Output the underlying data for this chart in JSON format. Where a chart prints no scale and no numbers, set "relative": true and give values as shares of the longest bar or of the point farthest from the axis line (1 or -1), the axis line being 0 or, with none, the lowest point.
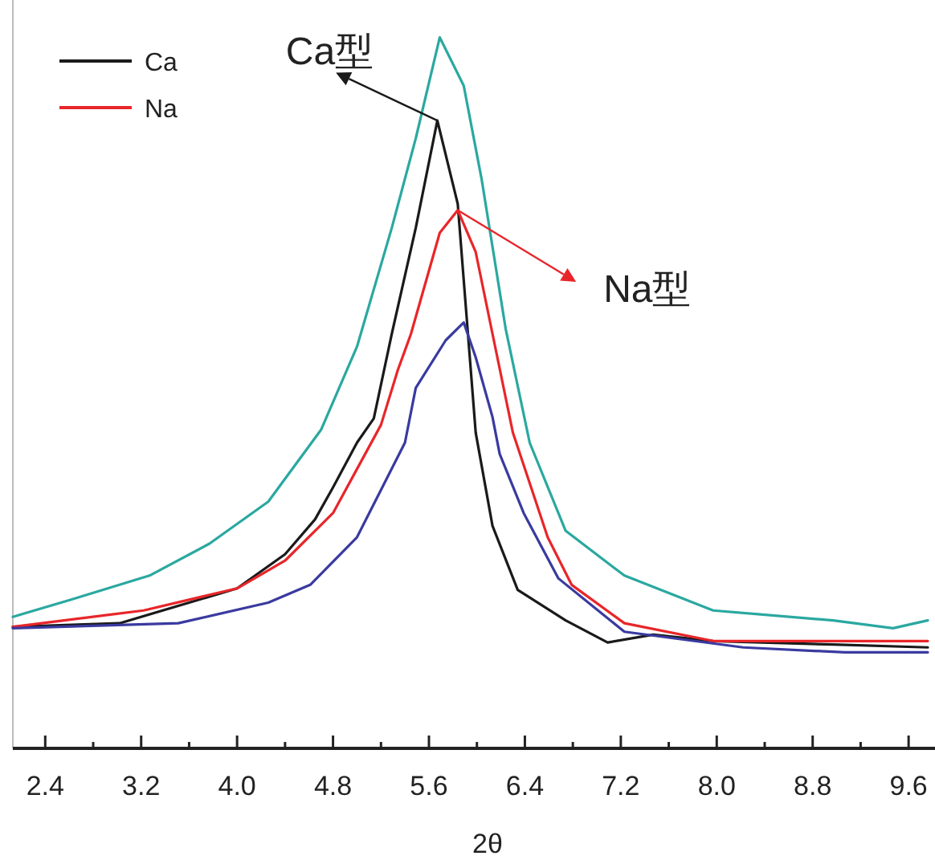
{
  "chart_data": {
    "type": "line",
    "relative": true,
    "xlabel": "2θ",
    "xlim": [
      2.13,
      9.78
    ],
    "xticks": [
      2.4,
      {
        "value": 2.8,
        "label": null
      },
      3.2,
      {
        "value": 3.6,
        "label": null
      },
      {
        "value": 4,
        "label": "4.0"
      },
      {
        "value": 4.4,
        "label": null
      },
      4.8,
      {
        "value": 5.2,
        "label": null
      },
      5.6,
      {
        "value": 6,
        "label": null
      },
      6.4,
      {
        "value": 6.8,
        "label": null
      },
      7.2,
      {
        "value": 7.6,
        "label": null
      },
      {
        "value": 8,
        "label": "8.0"
      },
      {
        "value": 8.4,
        "label": null
      },
      8.8,
      {
        "value": 9.2,
        "label": null
      },
      9.6
    ],
    "legend": "top left",
    "grid": false,
    "marker": "none",
    "line_style": "solid",
    "annotations": [
      {
        "text": "Ca型",
        "x": 5.67,
        "y": 0.883
      },
      {
        "text": "Na型",
        "x": 5.84,
        "y": 0.757
      }
    ],
    "series": [
      {
        "name": "Ca",
        "color": "#1a1a1a",
        "x": [
          2.13,
          3.02,
          4.0,
          4.4,
          4.65,
          4.8,
          5.0,
          5.14,
          5.29,
          5.49,
          5.67,
          5.84,
          5.99,
          6.13,
          6.34,
          6.74,
          7.09,
          7.47,
          7.97,
          8.97,
          9.76
        ],
        "values": [
          0.171,
          0.176,
          0.225,
          0.273,
          0.322,
          0.367,
          0.43,
          0.464,
          0.583,
          0.732,
          0.883,
          0.766,
          0.444,
          0.313,
          0.223,
          0.18,
          0.149,
          0.16,
          0.151,
          0.146,
          0.142
        ]
      },
      {
        "name": "Na",
        "color": "#e8262a",
        "x": [
          2.13,
          3.22,
          4.0,
          4.4,
          4.8,
          5.2,
          5.34,
          5.45,
          5.69,
          5.84,
          5.99,
          6.13,
          6.3,
          6.59,
          6.79,
          7.23,
          7.97,
          8.97,
          9.76
        ],
        "values": [
          0.171,
          0.194,
          0.225,
          0.264,
          0.331,
          0.455,
          0.532,
          0.583,
          0.725,
          0.757,
          0.698,
          0.583,
          0.444,
          0.297,
          0.23,
          0.176,
          0.151,
          0.151,
          0.151
        ]
      },
      {
        "color": "#3a3aa0",
        "x": [
          2.13,
          3.51,
          4.26,
          4.61,
          5.0,
          5.4,
          5.49,
          5.74,
          5.89,
          5.99,
          6.13,
          6.19,
          6.39,
          6.68,
          7.23,
          8.22,
          9.07,
          9.76
        ],
        "values": [
          0.169,
          0.176,
          0.205,
          0.23,
          0.297,
          0.43,
          0.507,
          0.574,
          0.599,
          0.55,
          0.466,
          0.414,
          0.331,
          0.239,
          0.164,
          0.142,
          0.135,
          0.135
        ]
      },
      {
        "color": "#2aa8a0",
        "x": [
          2.13,
          2.61,
          3.27,
          3.77,
          4.26,
          4.7,
          5.0,
          5.29,
          5.49,
          5.69,
          5.89,
          6.04,
          6.24,
          6.44,
          6.74,
          7.23,
          7.97,
          8.97,
          9.47,
          9.76
        ],
        "values": [
          0.185,
          0.209,
          0.243,
          0.288,
          0.347,
          0.448,
          0.565,
          0.732,
          0.858,
          1.0,
          0.932,
          0.8,
          0.59,
          0.43,
          0.306,
          0.243,
          0.194,
          0.18,
          0.169,
          0.18
        ]
      }
    ]
  }
}
